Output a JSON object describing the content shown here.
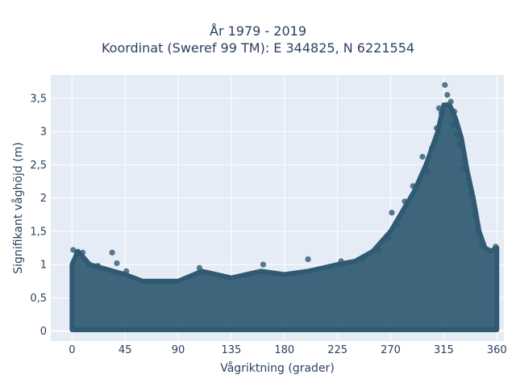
{
  "chart_data": {
    "type": "scatter",
    "title": "År 1979 - 2019",
    "subtitle": "Koordinat (Sweref 99 TM): E 344825, N 6221554",
    "xlabel": "Vågriktning (grader)",
    "ylabel": "Signifikant våghöjd (m)",
    "xlim": [
      -18,
      366
    ],
    "ylim": [
      -0.15,
      3.85
    ],
    "x_ticks": [
      0,
      45,
      90,
      135,
      180,
      225,
      270,
      315,
      360
    ],
    "x_tick_labels": [
      "0",
      "45",
      "90",
      "135",
      "180",
      "225",
      "270",
      "315",
      "360"
    ],
    "y_ticks": [
      0,
      0.5,
      1,
      1.5,
      2,
      2.5,
      3,
      3.5
    ],
    "y_tick_labels": [
      "0",
      "0,5",
      "1",
      "1,5",
      "2",
      "2,5",
      "3",
      "3,5"
    ],
    "grid": true,
    "marker_color": "#2f5a72",
    "plot_background": "#e5ecf6",
    "upper_envelope": {
      "x": [
        0,
        5,
        15,
        25,
        45,
        60,
        90,
        110,
        135,
        160,
        180,
        200,
        225,
        240,
        255,
        270,
        280,
        290,
        300,
        310,
        315,
        320,
        325,
        330,
        335,
        340,
        345,
        350,
        355,
        360
      ],
      "y": [
        1.0,
        1.2,
        1.0,
        0.95,
        0.85,
        0.75,
        0.75,
        0.9,
        0.8,
        0.9,
        0.85,
        0.9,
        1.0,
        1.05,
        1.2,
        1.5,
        1.8,
        2.1,
        2.5,
        3.0,
        3.4,
        3.4,
        3.2,
        2.9,
        2.4,
        2.0,
        1.5,
        1.25,
        1.2,
        1.25
      ]
    },
    "points": [
      {
        "x": 1,
        "y": 1.22
      },
      {
        "x": 4,
        "y": 1.18
      },
      {
        "x": 9,
        "y": 1.18
      },
      {
        "x": 34,
        "y": 1.18
      },
      {
        "x": 14,
        "y": 1.0
      },
      {
        "x": 22,
        "y": 0.98
      },
      {
        "x": 38,
        "y": 1.02
      },
      {
        "x": 46,
        "y": 0.9
      },
      {
        "x": 108,
        "y": 0.95
      },
      {
        "x": 162,
        "y": 1.0
      },
      {
        "x": 200,
        "y": 1.08
      },
      {
        "x": 228,
        "y": 1.05
      },
      {
        "x": 246,
        "y": 1.08
      },
      {
        "x": 260,
        "y": 1.22
      },
      {
        "x": 268,
        "y": 1.4
      },
      {
        "x": 271,
        "y": 1.78
      },
      {
        "x": 276,
        "y": 1.6
      },
      {
        "x": 282,
        "y": 1.95
      },
      {
        "x": 289,
        "y": 2.18
      },
      {
        "x": 297,
        "y": 2.62
      },
      {
        "x": 301,
        "y": 2.4
      },
      {
        "x": 305,
        "y": 2.75
      },
      {
        "x": 309,
        "y": 3.05
      },
      {
        "x": 311,
        "y": 3.35
      },
      {
        "x": 313,
        "y": 3.28
      },
      {
        "x": 316,
        "y": 3.7
      },
      {
        "x": 318,
        "y": 3.55
      },
      {
        "x": 319,
        "y": 3.4
      },
      {
        "x": 321,
        "y": 3.45
      },
      {
        "x": 323,
        "y": 3.1
      },
      {
        "x": 324,
        "y": 3.3
      },
      {
        "x": 326,
        "y": 2.95
      },
      {
        "x": 328,
        "y": 2.8
      },
      {
        "x": 332,
        "y": 2.45
      },
      {
        "x": 336,
        "y": 2.3
      },
      {
        "x": 338,
        "y": 2.05
      },
      {
        "x": 341,
        "y": 1.75
      },
      {
        "x": 344,
        "y": 1.5
      },
      {
        "x": 347,
        "y": 1.3
      },
      {
        "x": 359,
        "y": 1.27
      }
    ]
  }
}
